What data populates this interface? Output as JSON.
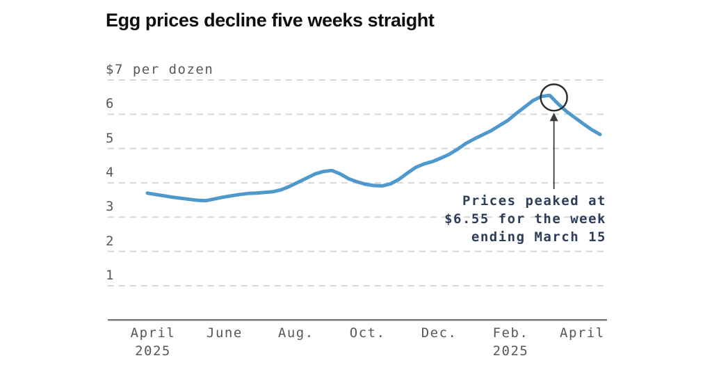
{
  "chart_data": {
    "type": "line",
    "title": "Egg prices decline five weeks straight",
    "unit_label": "$7 per dozen",
    "ylim": [
      0,
      7
    ],
    "grid": "dashed-horizontal",
    "legend": "none",
    "y_ticks": [
      {
        "value": 7,
        "label": "$7 per dozen"
      },
      {
        "value": 6,
        "label": "6"
      },
      {
        "value": 5,
        "label": "5"
      },
      {
        "value": 4,
        "label": "4"
      },
      {
        "value": 3,
        "label": "3"
      },
      {
        "value": 2,
        "label": "2"
      },
      {
        "value": 1,
        "label": "1"
      }
    ],
    "x_ticks": [
      {
        "label": "April",
        "year": "2025",
        "month_index": 0
      },
      {
        "label": "June",
        "year": "",
        "month_index": 2
      },
      {
        "label": "Aug.",
        "year": "",
        "month_index": 4
      },
      {
        "label": "Oct.",
        "year": "",
        "month_index": 6
      },
      {
        "label": "Dec.",
        "year": "",
        "month_index": 8
      },
      {
        "label": "Feb.",
        "year": "2025",
        "month_index": 10
      },
      {
        "label": "April",
        "year": "",
        "month_index": 12
      }
    ],
    "x_unit": "week",
    "values": [
      3.7,
      3.66,
      3.62,
      3.58,
      3.55,
      3.52,
      3.49,
      3.48,
      3.53,
      3.58,
      3.62,
      3.66,
      3.69,
      3.7,
      3.72,
      3.74,
      3.8,
      3.9,
      4.02,
      4.14,
      4.26,
      4.33,
      4.36,
      4.26,
      4.12,
      4.03,
      3.96,
      3.92,
      3.91,
      3.97,
      4.1,
      4.28,
      4.45,
      4.55,
      4.62,
      4.72,
      4.83,
      4.98,
      5.15,
      5.28,
      5.4,
      5.52,
      5.67,
      5.82,
      6.02,
      6.21,
      6.4,
      6.52,
      6.55,
      6.3,
      6.08,
      5.9,
      5.72,
      5.55,
      5.41
    ],
    "annotation": {
      "lines": [
        "Prices peaked at",
        "$6.55 for the week",
        "ending March 15"
      ],
      "peak_value": 6.55,
      "target_week_index": 48
    },
    "colors": {
      "line": "#4f98cc",
      "title": "#0f0f0f",
      "axis_text": "#575757",
      "axis_line": "#7b7b7b",
      "gridline": "#d8d8d8",
      "annotation_text": "#2e3d5a",
      "circle": "#2e2e2e",
      "arrow": "#3a3a3a",
      "background": "#ffffff"
    }
  }
}
